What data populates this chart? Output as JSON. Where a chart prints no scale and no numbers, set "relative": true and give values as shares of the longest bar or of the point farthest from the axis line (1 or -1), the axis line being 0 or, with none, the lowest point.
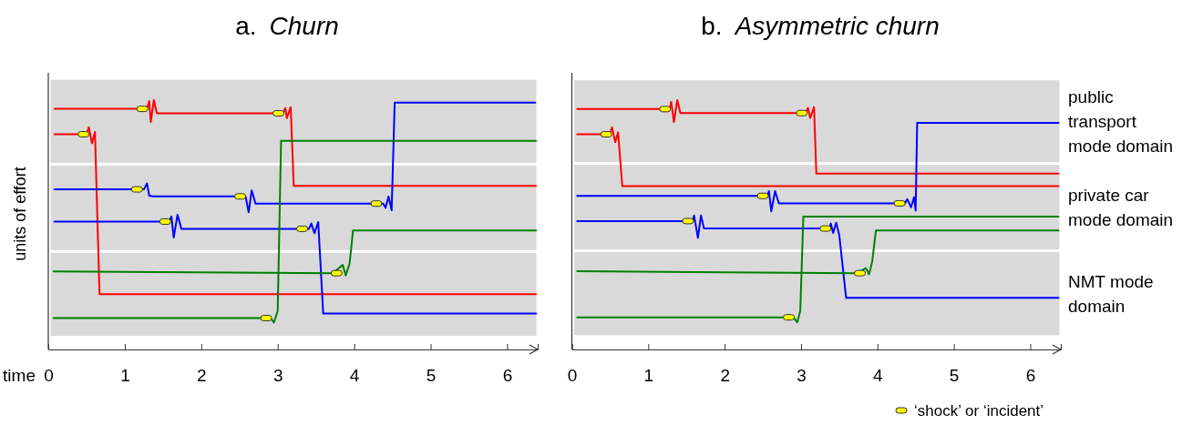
{
  "chart_data": [
    {
      "type": "line",
      "title": "a. Churn",
      "xlabel": "time",
      "ylabel": "units of effort",
      "relative": true,
      "tick_labels": "x",
      "xlim": [
        0,
        6.4
      ],
      "xticks": [
        0,
        1,
        2,
        3,
        4,
        5,
        6
      ],
      "bands": [
        {
          "axis": "y",
          "from": 0.049,
          "to": 0.393,
          "color": "#d9d9d9"
        },
        {
          "axis": "y",
          "from": 0.393,
          "to": 0.743,
          "color": "#d9d9d9"
        },
        {
          "axis": "y",
          "from": 0.743,
          "to": 1.087,
          "color": "#d9d9d9"
        }
      ],
      "series": [
        {
          "color": "#ff0000",
          "x": [
            0.08,
            1.29,
            1.32,
            1.34,
            1.38,
            1.42,
            3.07,
            3.1,
            3.12,
            3.17,
            3.21,
            6.38
          ],
          "values": [
            0.965,
            0.965,
            0.996,
            0.912,
            1.0,
            0.947,
            0.947,
            0.968,
            0.928,
            0.972,
            0.656,
            0.656
          ]
        },
        {
          "color": "#ff0000",
          "x": [
            0.08,
            0.5,
            0.53,
            0.57,
            0.61,
            0.67,
            6.38
          ],
          "values": [
            0.863,
            0.863,
            0.891,
            0.827,
            0.872,
            0.222,
            0.222
          ]
        },
        {
          "color": "#0000ff",
          "x": [
            0.08,
            1.25,
            1.29,
            1.32,
            1.37,
            2.58,
            2.62,
            2.66,
            2.71,
            4.38,
            4.41,
            4.45,
            4.49,
            4.53,
            6.37
          ],
          "values": [
            0.642,
            0.642,
            0.666,
            0.617,
            0.614,
            0.614,
            0.55,
            0.638,
            0.585,
            0.585,
            0.568,
            0.613,
            0.558,
            0.99,
            0.99
          ]
        },
        {
          "color": "#0000ff",
          "x": [
            0.08,
            1.575,
            1.61,
            1.64,
            1.69,
            1.74,
            3.41,
            3.44,
            3.48,
            3.53,
            3.595,
            6.38
          ],
          "values": [
            0.513,
            0.513,
            0.533,
            0.449,
            0.54,
            0.484,
            0.484,
            0.505,
            0.466,
            0.511,
            0.144,
            0.144
          ]
        },
        {
          "color": "#008000",
          "x": [
            0.07,
            3.72,
            3.85,
            3.89,
            3.94,
            3.985,
            6.38
          ],
          "values": [
            0.313,
            0.306,
            0.339,
            0.297,
            0.344,
            0.477,
            0.477
          ]
        },
        {
          "color": "#008000",
          "x": [
            0.07,
            2.906,
            2.95,
            3.0,
            3.044,
            6.38
          ],
          "values": [
            0.126,
            0.126,
            0.108,
            0.154,
            0.837,
            0.837
          ]
        },
        {
          "type": "scatter",
          "marker": "square",
          "color": "#ffff00",
          "x": [
            1.23,
            3.01,
            0.46,
            1.16,
            2.51,
            4.29,
            1.53,
            3.32,
            3.77,
            2.85
          ],
          "values": [
            0.965,
            0.947,
            0.863,
            0.642,
            0.614,
            0.585,
            0.513,
            0.484,
            0.306,
            0.126
          ]
        }
      ]
    },
    {
      "type": "line",
      "title": "b. Asymmetric churn",
      "relative": true,
      "tick_labels": "x",
      "xlim": [
        0,
        6.4
      ],
      "xticks": [
        0,
        1,
        2,
        3,
        4,
        5,
        6
      ],
      "legend": "bottom right",
      "bands": [
        {
          "axis": "y",
          "from": 0.052,
          "to": 0.396,
          "color": "#d9d9d9",
          "label": "NMT mode domain"
        },
        {
          "axis": "y",
          "from": 0.396,
          "to": 0.746,
          "color": "#d9d9d9",
          "label": "private car mode domain"
        },
        {
          "axis": "y",
          "from": 0.746,
          "to": 1.085,
          "color": "#d9d9d9",
          "label": "public transport mode domain"
        }
      ],
      "series": [
        {
          "color": "#ff0000",
          "x": [
            0.07,
            1.28,
            1.3,
            1.336,
            1.38,
            1.42,
            3.06,
            3.09,
            3.12,
            3.17,
            3.2,
            6.37
          ],
          "values": [
            0.964,
            0.964,
            0.993,
            0.912,
            1.0,
            0.948,
            0.948,
            0.969,
            0.928,
            0.972,
            0.705,
            0.705
          ]
        },
        {
          "color": "#ff0000",
          "x": [
            0.07,
            0.5,
            0.525,
            0.568,
            0.605,
            0.66,
            6.37
          ],
          "values": [
            0.863,
            0.863,
            0.891,
            0.831,
            0.871,
            0.655,
            0.655
          ]
        },
        {
          "color": "#0000ff",
          "x": [
            0.07,
            2.56,
            2.58,
            2.61,
            2.66,
            2.71,
            4.36,
            4.39,
            4.44,
            4.48,
            4.5,
            4.52,
            6.37
          ],
          "values": [
            0.616,
            0.616,
            0.635,
            0.554,
            0.635,
            0.586,
            0.586,
            0.603,
            0.57,
            0.611,
            0.557,
            0.909,
            0.909
          ]
        },
        {
          "color": "#0000ff",
          "x": [
            0.07,
            1.58,
            1.6,
            1.65,
            1.69,
            1.73,
            3.37,
            3.39,
            3.42,
            3.46,
            3.5,
            3.59,
            6.37
          ],
          "values": [
            0.515,
            0.515,
            0.537,
            0.448,
            0.537,
            0.485,
            0.485,
            0.505,
            0.467,
            0.508,
            0.459,
            0.207,
            0.207
          ]
        },
        {
          "color": "#008000",
          "x": [
            0.07,
            3.73,
            3.85,
            3.89,
            3.93,
            3.98,
            6.37
          ],
          "values": [
            0.314,
            0.306,
            0.326,
            0.301,
            0.35,
            0.477,
            0.477
          ]
        },
        {
          "color": "#008000",
          "x": [
            0.07,
            2.9,
            2.95,
            2.99,
            3.03,
            6.37
          ],
          "values": [
            0.129,
            0.129,
            0.109,
            0.155,
            0.533,
            0.533
          ]
        },
        {
          "type": "scatter",
          "marker": "square",
          "name": "‘shock’ or ‘incident’",
          "color": "#ffff00",
          "x": [
            1.22,
            3.01,
            0.45,
            2.5,
            4.29,
            1.52,
            3.32,
            3.77,
            2.84
          ],
          "values": [
            0.964,
            0.948,
            0.863,
            0.616,
            0.586,
            0.515,
            0.485,
            0.306,
            0.129
          ]
        }
      ]
    }
  ]
}
